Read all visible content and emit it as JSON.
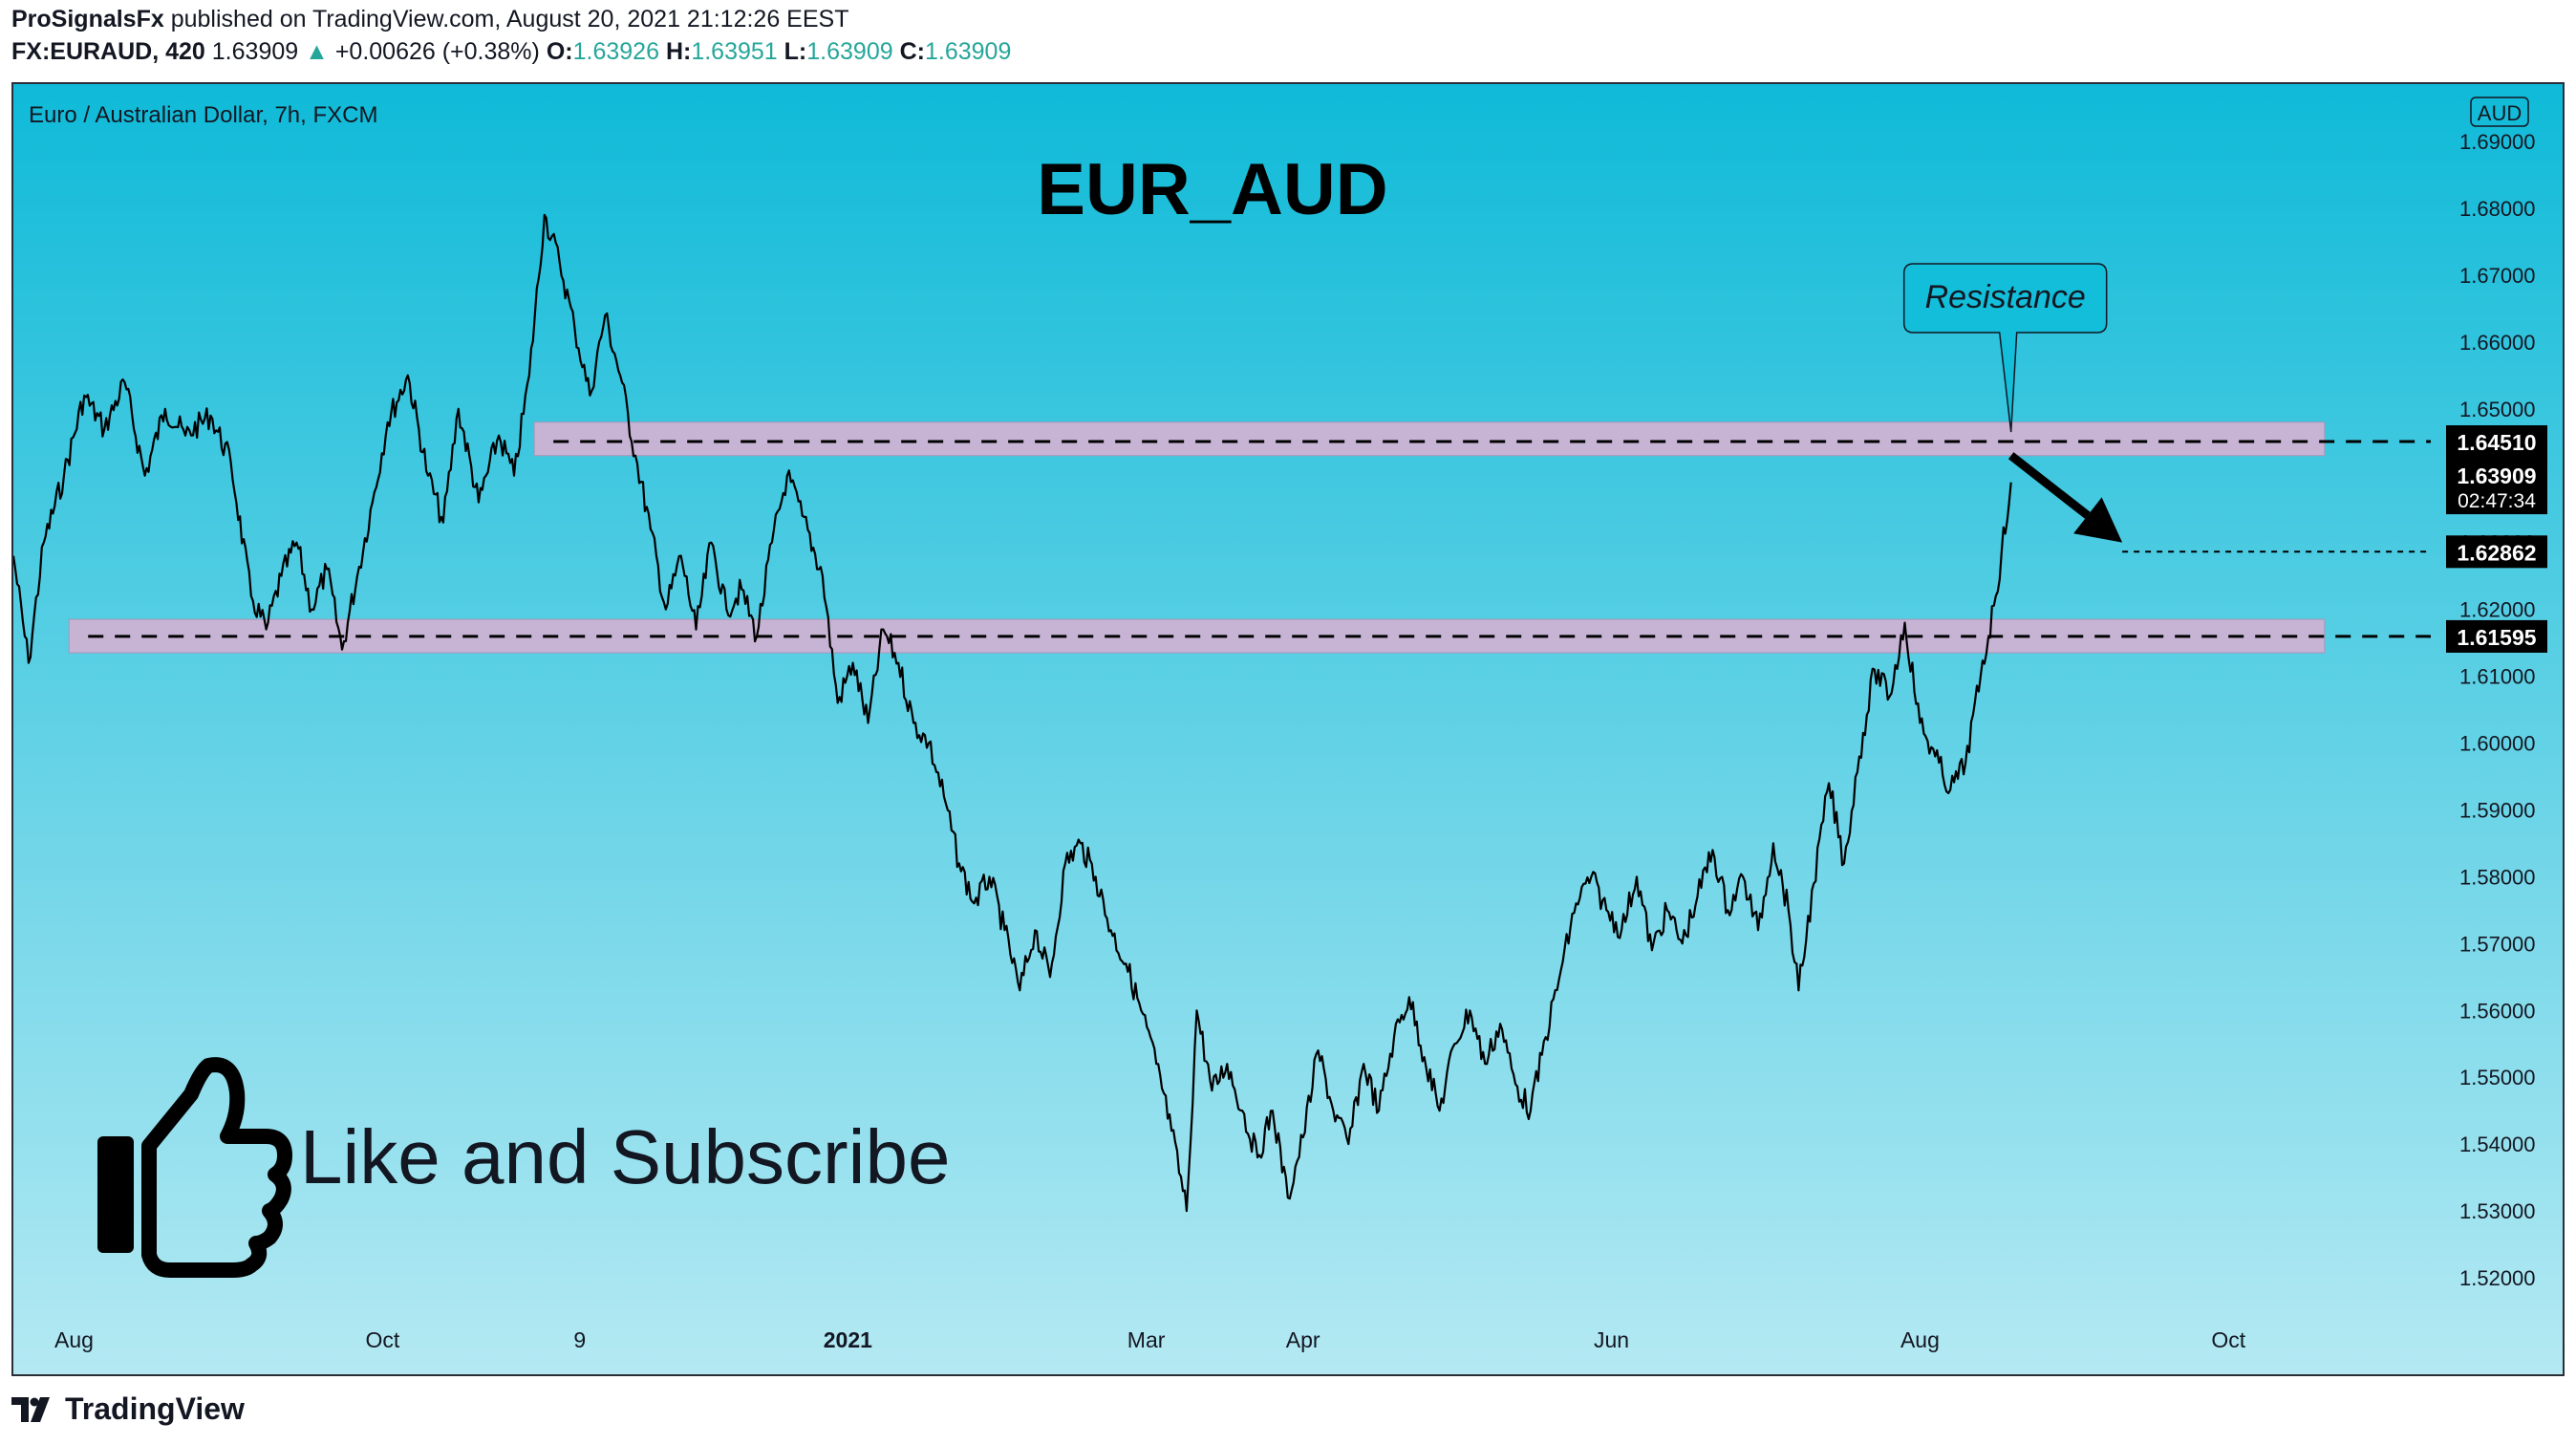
{
  "header": {
    "publisher": "ProSignalsFx",
    "published_text": "published on TradingView.com, August 20, 2021 21:12:26 EEST",
    "symbol": "FX:EURAUD, 420",
    "last": "1.63909",
    "change_arrow": "▲",
    "change": "+0.00626 (+0.38%)",
    "ohlc": [
      {
        "label": "O:",
        "value": "1.63926"
      },
      {
        "label": "H:",
        "value": "1.63951"
      },
      {
        "label": "L:",
        "value": "1.63909"
      },
      {
        "label": "C:",
        "value": "1.63909"
      }
    ]
  },
  "footer": {
    "brand": "TradingView"
  },
  "colors": {
    "bg_top": "#0fbad8",
    "bg_bottom": "#b4e9f3",
    "zone": "#c7b3d4",
    "line": "#000000",
    "up": "#26a69a"
  },
  "chart_data": {
    "type": "line",
    "instrument": "Euro / Australian Dollar, 7h, FXCM",
    "title": "EUR_AUD",
    "currency": "AUD",
    "ylim": [
      1.515,
      1.69
    ],
    "y_ticks": [
      "1.52000",
      "1.53000",
      "1.54000",
      "1.55000",
      "1.56000",
      "1.57000",
      "1.58000",
      "1.59000",
      "1.60000",
      "1.61000",
      "1.62000",
      "1.63000",
      "1.64000",
      "1.65000",
      "1.66000",
      "1.67000",
      "1.68000",
      "1.69000"
    ],
    "x_ticks": [
      {
        "label": "Aug",
        "date": "2020-08-01",
        "bold": false
      },
      {
        "label": "Oct",
        "date": "2020-10-01",
        "bold": false
      },
      {
        "label": "9",
        "date": "2020-11-09",
        "bold": false
      },
      {
        "label": "2021",
        "date": "2021-01-01",
        "bold": true
      },
      {
        "label": "Mar",
        "date": "2021-03-01",
        "bold": false
      },
      {
        "label": "Apr",
        "date": "2021-04-01",
        "bold": false
      },
      {
        "label": "Jun",
        "date": "2021-06-01",
        "bold": false
      },
      {
        "label": "Aug",
        "date": "2021-08-01",
        "bold": false
      },
      {
        "label": "Oct",
        "date": "2021-10-01",
        "bold": false
      }
    ],
    "xlim": [
      "2020-07-20",
      "2021-11-10"
    ],
    "series": [
      {
        "values": [
          [
            "2020-07-20",
            1.628
          ],
          [
            "2020-07-23",
            1.612
          ],
          [
            "2020-07-26",
            1.63
          ],
          [
            "2020-07-30",
            1.64
          ],
          [
            "2020-08-03",
            1.652
          ],
          [
            "2020-08-07",
            1.647
          ],
          [
            "2020-08-11",
            1.654
          ],
          [
            "2020-08-15",
            1.64
          ],
          [
            "2020-08-19",
            1.65
          ],
          [
            "2020-08-23",
            1.646
          ],
          [
            "2020-08-28",
            1.649
          ],
          [
            "2020-09-01",
            1.642
          ],
          [
            "2020-09-05",
            1.622
          ],
          [
            "2020-09-08",
            1.617
          ],
          [
            "2020-09-11",
            1.625
          ],
          [
            "2020-09-14",
            1.63
          ],
          [
            "2020-09-17",
            1.62
          ],
          [
            "2020-09-20",
            1.626
          ],
          [
            "2020-09-23",
            1.614
          ],
          [
            "2020-09-26",
            1.625
          ],
          [
            "2020-09-29",
            1.636
          ],
          [
            "2020-10-02",
            1.648
          ],
          [
            "2020-10-06",
            1.655
          ],
          [
            "2020-10-10",
            1.64
          ],
          [
            "2020-10-13",
            1.633
          ],
          [
            "2020-10-16",
            1.65
          ],
          [
            "2020-10-20",
            1.636
          ],
          [
            "2020-10-24",
            1.646
          ],
          [
            "2020-10-27",
            1.64
          ],
          [
            "2020-10-30",
            1.655
          ],
          [
            "2020-11-02",
            1.679
          ],
          [
            "2020-11-05",
            1.672
          ],
          [
            "2020-11-08",
            1.662
          ],
          [
            "2020-11-11",
            1.652
          ],
          [
            "2020-11-14",
            1.664
          ],
          [
            "2020-11-17",
            1.655
          ],
          [
            "2020-11-20",
            1.643
          ],
          [
            "2020-11-23",
            1.632
          ],
          [
            "2020-11-26",
            1.62
          ],
          [
            "2020-11-29",
            1.628
          ],
          [
            "2020-12-02",
            1.617
          ],
          [
            "2020-12-05",
            1.63
          ],
          [
            "2020-12-08",
            1.62
          ],
          [
            "2020-12-11",
            1.623
          ],
          [
            "2020-12-14",
            1.616
          ],
          [
            "2020-12-17",
            1.63
          ],
          [
            "2020-12-20",
            1.64
          ],
          [
            "2020-12-23",
            1.634
          ],
          [
            "2020-12-27",
            1.625
          ],
          [
            "2020-12-30",
            1.606
          ],
          [
            "2021-01-02",
            1.612
          ],
          [
            "2021-01-05",
            1.603
          ],
          [
            "2021-01-08",
            1.617
          ],
          [
            "2021-01-11",
            1.612
          ],
          [
            "2021-01-14",
            1.603
          ],
          [
            "2021-01-17",
            1.6
          ],
          [
            "2021-01-20",
            1.592
          ],
          [
            "2021-01-23",
            1.582
          ],
          [
            "2021-01-26",
            1.576
          ],
          [
            "2021-01-29",
            1.58
          ],
          [
            "2021-02-01",
            1.572
          ],
          [
            "2021-02-04",
            1.563
          ],
          [
            "2021-02-07",
            1.572
          ],
          [
            "2021-02-10",
            1.565
          ],
          [
            "2021-02-13",
            1.582
          ],
          [
            "2021-02-16",
            1.585
          ],
          [
            "2021-02-19",
            1.58
          ],
          [
            "2021-02-22",
            1.572
          ],
          [
            "2021-02-25",
            1.567
          ],
          [
            "2021-02-28",
            1.56
          ],
          [
            "2021-03-03",
            1.552
          ],
          [
            "2021-03-06",
            1.542
          ],
          [
            "2021-03-09",
            1.53
          ],
          [
            "2021-03-11",
            1.56
          ],
          [
            "2021-03-14",
            1.548
          ],
          [
            "2021-03-17",
            1.552
          ],
          [
            "2021-03-20",
            1.545
          ],
          [
            "2021-03-23",
            1.538
          ],
          [
            "2021-03-26",
            1.545
          ],
          [
            "2021-03-29",
            1.532
          ],
          [
            "2021-04-01",
            1.541
          ],
          [
            "2021-04-04",
            1.554
          ],
          [
            "2021-04-07",
            1.545
          ],
          [
            "2021-04-10",
            1.54
          ],
          [
            "2021-04-13",
            1.552
          ],
          [
            "2021-04-16",
            1.545
          ],
          [
            "2021-04-19",
            1.556
          ],
          [
            "2021-04-22",
            1.562
          ],
          [
            "2021-04-25",
            1.553
          ],
          [
            "2021-04-28",
            1.545
          ],
          [
            "2021-05-01",
            1.555
          ],
          [
            "2021-05-04",
            1.56
          ],
          [
            "2021-05-07",
            1.552
          ],
          [
            "2021-05-10",
            1.558
          ],
          [
            "2021-05-13",
            1.549
          ],
          [
            "2021-05-16",
            1.545
          ],
          [
            "2021-05-19",
            1.556
          ],
          [
            "2021-05-22",
            1.566
          ],
          [
            "2021-05-25",
            1.576
          ],
          [
            "2021-05-28",
            1.58
          ],
          [
            "2021-05-31",
            1.575
          ],
          [
            "2021-06-03",
            1.572
          ],
          [
            "2021-06-06",
            1.58
          ],
          [
            "2021-06-09",
            1.569
          ],
          [
            "2021-06-12",
            1.575
          ],
          [
            "2021-06-15",
            1.57
          ],
          [
            "2021-06-18",
            1.577
          ],
          [
            "2021-06-21",
            1.584
          ],
          [
            "2021-06-24",
            1.575
          ],
          [
            "2021-06-27",
            1.58
          ],
          [
            "2021-06-30",
            1.572
          ],
          [
            "2021-07-03",
            1.585
          ],
          [
            "2021-07-06",
            1.575
          ],
          [
            "2021-07-08",
            1.563
          ],
          [
            "2021-07-11",
            1.579
          ],
          [
            "2021-07-14",
            1.594
          ],
          [
            "2021-07-17",
            1.582
          ],
          [
            "2021-07-20",
            1.598
          ],
          [
            "2021-07-23",
            1.611
          ],
          [
            "2021-07-26",
            1.607
          ],
          [
            "2021-07-29",
            1.618
          ],
          [
            "2021-08-01",
            1.603
          ],
          [
            "2021-08-04",
            1.598
          ],
          [
            "2021-08-07",
            1.593
          ],
          [
            "2021-08-10",
            1.597
          ],
          [
            "2021-08-13",
            1.61
          ],
          [
            "2021-08-16",
            1.622
          ],
          [
            "2021-08-19",
            1.639
          ]
        ]
      }
    ],
    "zones": [
      {
        "from": 1.643,
        "to": 1.648,
        "x_start": "2020-10-31",
        "x_end": "2021-10-20"
      },
      {
        "from": 1.6135,
        "to": 1.6185,
        "x_start": "2020-07-31",
        "x_end": "2021-10-20"
      }
    ],
    "levels": [
      {
        "value": 1.6451,
        "label": "1.64510"
      },
      {
        "value": 1.61595,
        "label": "1.61595"
      },
      {
        "value": 1.62862,
        "label": "1.62862",
        "dotted": true,
        "x_start": "2021-09-10"
      }
    ],
    "price_tag": {
      "value": "1.63909",
      "countdown": "02:47:34",
      "y": 1.63909
    },
    "callout": {
      "text": "Resistance",
      "x": "2021-08-19",
      "y": 1.6451
    },
    "forecast_arrow": {
      "x_from": "2021-08-19",
      "y_from": 1.643,
      "x_to": "2021-09-10",
      "y_to": 1.63
    },
    "overlay_text": "Like and Subscribe"
  }
}
